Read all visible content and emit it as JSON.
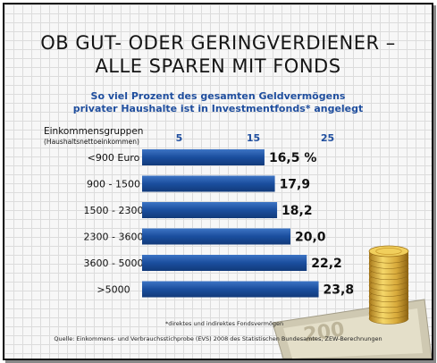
{
  "title_line1": "OB GUT- ODER GERINGVERDIENER –",
  "title_line2": "ALLE SPAREN MIT FONDS",
  "subtitle_line1": "So viel Prozent des gesamten Geldvermögens",
  "subtitle_line2": "privater Haushalte ist in Investmentfonds* angelegt",
  "group_label": "Einkommensgruppen",
  "group_sublabel": "(Haushaltsnettoeinkommen)",
  "footnote": "*direktes und indirektes Fondsvermögen",
  "source": "Quelle: Einkommens- und Verbrauchsstichprobe (EVS) 2008 des Statistischen Bundesamtes, ZEW-Berechnungen",
  "colors": {
    "bar": "#1a4e9e",
    "bar_light": "#3d74c4",
    "title": "#151515",
    "subtitle": "#1f4e9e",
    "tick": "#1f4e9e"
  },
  "chart_data": {
    "type": "bar",
    "orientation": "horizontal",
    "categories": [
      "<900 Euro",
      "900 - 1500",
      "1500 - 2300",
      "2300 - 3600",
      "3600 - 5000",
      ">5000"
    ],
    "values": [
      16.5,
      17.9,
      18.2,
      20.0,
      22.2,
      23.8
    ],
    "value_labels": [
      "16,5 %",
      "17,9",
      "18,2",
      "20,0",
      "22,2",
      "23,8"
    ],
    "xticks": [
      5,
      15,
      25
    ],
    "xlim": [
      0,
      26
    ],
    "grid": false
  }
}
